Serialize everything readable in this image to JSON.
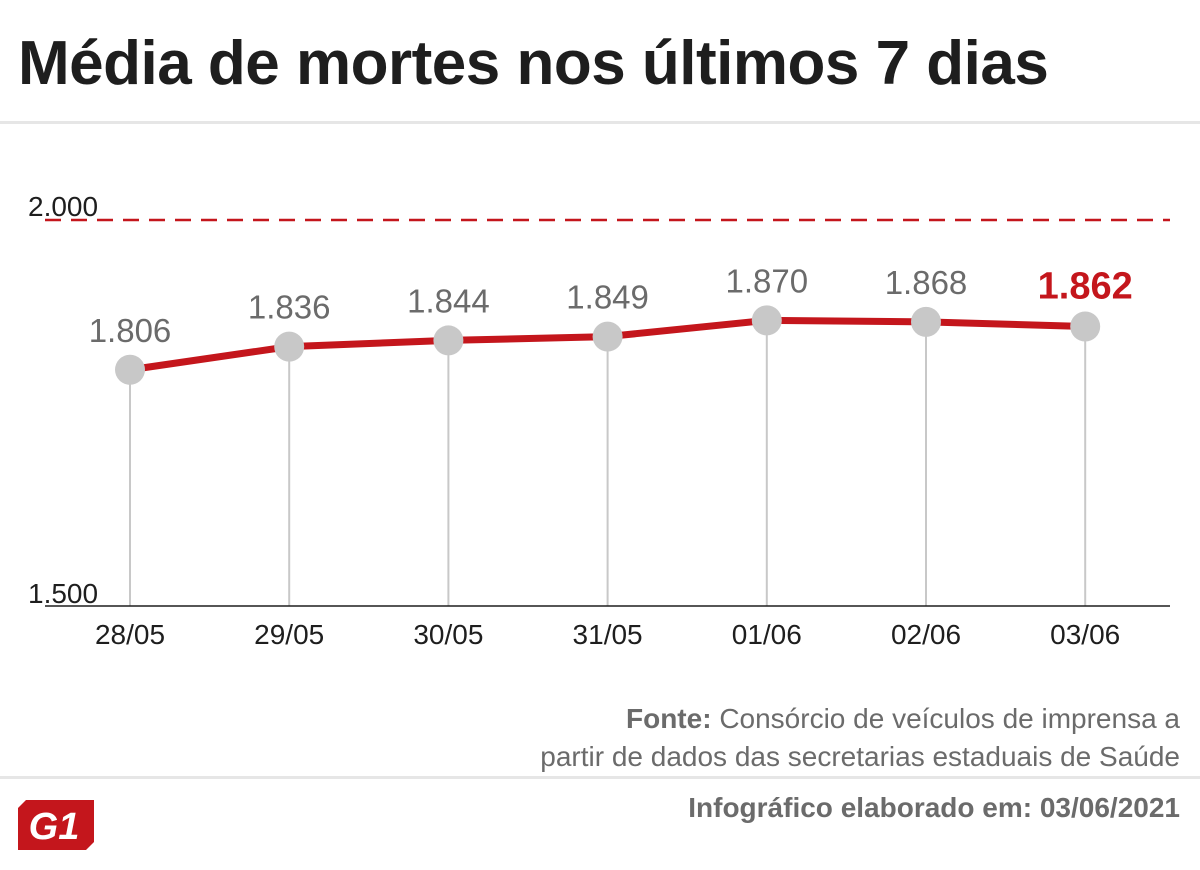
{
  "title": "Média de mortes nos últimos 7 dias",
  "source": {
    "label": "Fonte:",
    "text_line1": "Consórcio de veículos de imprensa a",
    "text_line2": "partir de dados das secretarias estaduais de Saúde"
  },
  "footer_note": "Infográfico elaborado em: 03/06/2021",
  "logo_text": "G1",
  "colors": {
    "line": "#c4161c",
    "marker": "#c8c8c8",
    "highlight_label": "#c4161c",
    "label": "#6b6b6b",
    "reference_line": "#c4161c"
  },
  "chart_data": {
    "type": "line",
    "categories": [
      "28/05",
      "29/05",
      "30/05",
      "31/05",
      "01/06",
      "02/06",
      "03/06"
    ],
    "values": [
      1806,
      1836,
      1844,
      1849,
      1870,
      1868,
      1862
    ],
    "value_labels": [
      "1.806",
      "1.836",
      "1.844",
      "1.849",
      "1.870",
      "1.868",
      "1.862"
    ],
    "highlight_index": 6,
    "ylim": [
      1500,
      2000
    ],
    "y_tick_labels": [
      "1.500",
      "2.000"
    ],
    "reference_line": {
      "value": 2000,
      "style": "dashed"
    },
    "grid": false,
    "legend": "none",
    "xlabel": "",
    "ylabel": ""
  }
}
